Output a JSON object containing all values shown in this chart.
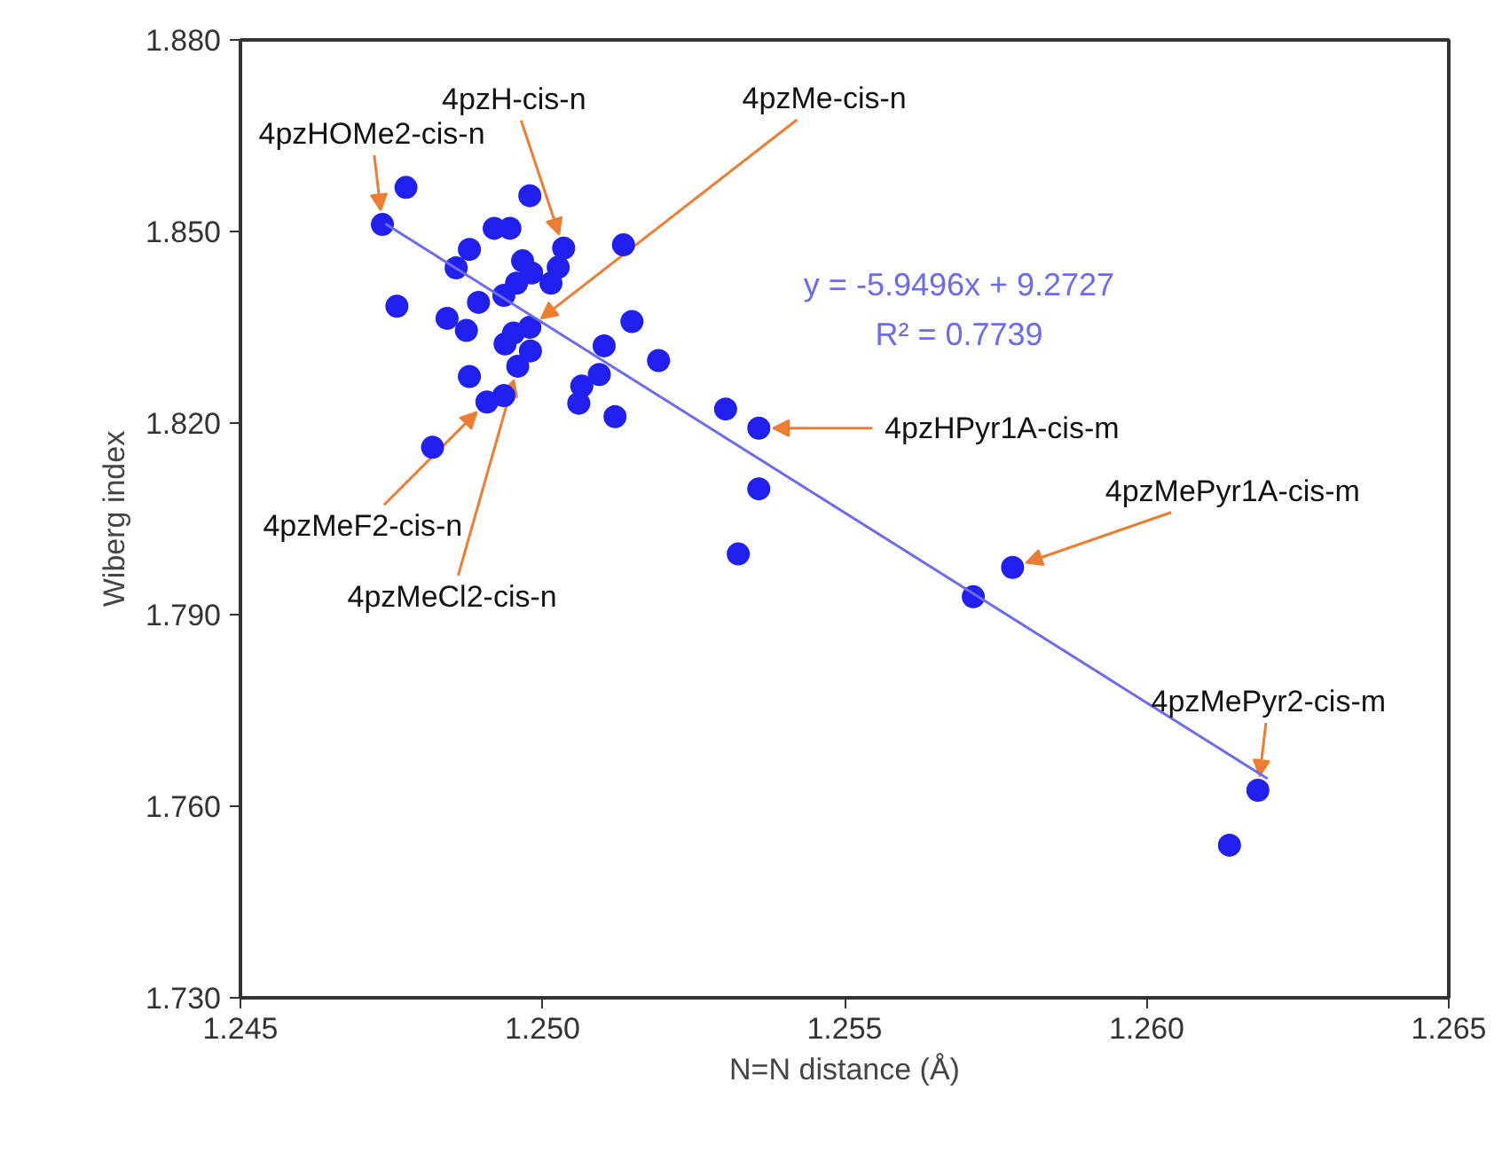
{
  "chart_data": {
    "type": "scatter",
    "xlabel": "N=N distance (Å)",
    "ylabel": "Wiberg index",
    "xlim": [
      1.245,
      1.265
    ],
    "ylim": [
      1.73,
      1.88
    ],
    "xticks": [
      {
        "value": 1.245,
        "label": "1.245"
      },
      {
        "value": 1.25,
        "label": "1.250"
      },
      {
        "value": 1.255,
        "label": "1.255"
      },
      {
        "value": 1.26,
        "label": "1.260"
      },
      {
        "value": 1.265,
        "label": "1.265"
      }
    ],
    "yticks": [
      {
        "value": 1.73,
        "label": "1.730"
      },
      {
        "value": 1.76,
        "label": "1.760"
      },
      {
        "value": 1.79,
        "label": "1.790"
      },
      {
        "value": 1.82,
        "label": "1.820"
      },
      {
        "value": 1.85,
        "label": "1.850"
      },
      {
        "value": 1.88,
        "label": "1.880"
      }
    ],
    "grid": false,
    "marker": "circle",
    "series": [
      {
        "color": "#2020f0",
        "x": [
          1.24774,
          1.24979,
          1.24735,
          1.2492,
          1.24946,
          1.25035,
          1.25134,
          1.24879,
          1.24857,
          1.24967,
          1.24982,
          1.25026,
          1.25014,
          1.24957,
          1.24936,
          1.24759,
          1.24894,
          1.24842,
          1.24874,
          1.25148,
          1.24979,
          1.24952,
          1.24938,
          1.25102,
          1.25192,
          1.2498,
          1.24959,
          1.25094,
          1.24879,
          1.25065,
          1.2506,
          1.24936,
          1.24908,
          1.2512,
          1.24818,
          1.25303,
          1.25358,
          1.25358,
          1.25324,
          1.25778,
          1.25713,
          1.26184,
          1.26137
        ],
        "values": [
          1.8569,
          1.8556,
          1.8511,
          1.8505,
          1.8505,
          1.8474,
          1.8479,
          1.8472,
          1.8443,
          1.8454,
          1.8435,
          1.8444,
          1.8419,
          1.8419,
          1.84,
          1.8383,
          1.8389,
          1.8364,
          1.8345,
          1.8359,
          1.835,
          1.8341,
          1.8324,
          1.8321,
          1.8298,
          1.8313,
          1.8289,
          1.8276,
          1.8273,
          1.8258,
          1.8231,
          1.8243,
          1.8233,
          1.821,
          1.8162,
          1.8222,
          1.8192,
          1.8097,
          1.7995,
          1.7974,
          1.7928,
          1.7625,
          1.7539
        ]
      },
      {
        "type": "line",
        "marker": "none",
        "color": "#6b6bf0",
        "x": [
          1.2474,
          1.262
        ],
        "values": [
          1.8512,
          1.7643
        ]
      }
    ],
    "annotations": [
      "y = -5.9496x + 9.2727",
      "R² = 0.7739",
      {
        "text": "4pzHOMe2-cis-n",
        "x": 1.24735,
        "y": 1.8511
      },
      {
        "text": "4pzH-cis-n",
        "x": 1.25035,
        "y": 1.8474
      },
      {
        "text": "4pzMe-cis-n",
        "x": 1.24979,
        "y": 1.835
      },
      {
        "text": "4pzHPyr1A-cis-m",
        "x": 1.25358,
        "y": 1.8192
      },
      {
        "text": "4pzMePyr1A-cis-m",
        "x": 1.25778,
        "y": 1.7974
      },
      {
        "text": "4pzMePyr2-cis-m",
        "x": 1.26184,
        "y": 1.7625
      },
      {
        "text": "4pzMeF2-cis-n",
        "x": 1.24908,
        "y": 1.8233
      },
      {
        "text": "4pzMeCl2-cis-n",
        "x": 1.24959,
        "y": 1.8289
      }
    ]
  }
}
